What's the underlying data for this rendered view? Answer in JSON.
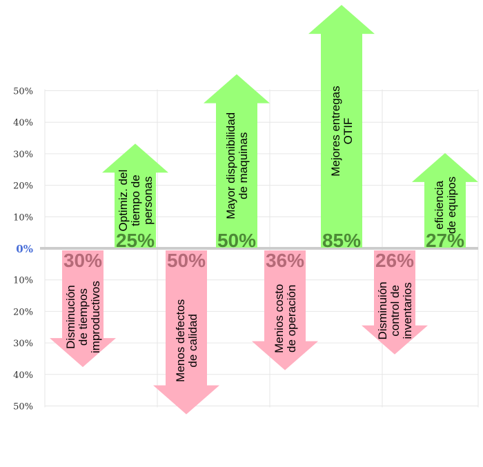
{
  "chart_data": {
    "type": "bar",
    "ylim": [
      -50,
      50
    ],
    "grid": true,
    "y_ticks_up": [
      "50%",
      "40%",
      "30%",
      "20%",
      "10%"
    ],
    "y_tick_zero": "0%",
    "y_ticks_down": [
      "10%",
      "20%",
      "30%",
      "40%",
      "50%"
    ],
    "colors": {
      "up": "#99ff77",
      "up_text": "#4c8a36",
      "down": "#ffafc0",
      "down_text": "#b56a78",
      "axis": "#cccccc",
      "grid": "#e6e6e6"
    },
    "increases": [
      {
        "label": "Optimiz. del tiempo de personas",
        "lines": [
          "Optimiz. del",
          "tiempo de",
          "personas"
        ],
        "value": 25,
        "display": "25%",
        "height": 33
      },
      {
        "label": "Mayor disponibilidad de maquinas",
        "lines": [
          "Mayor disponibilidad",
          "de maquinas"
        ],
        "value": 50,
        "display": "50%",
        "height": 55
      },
      {
        "label": "Mejores entregas OTIF",
        "lines": [
          "Mejores entregas",
          "OTIF"
        ],
        "value": 85,
        "display": "85%",
        "height": 77
      },
      {
        "label": "eficiencia de equipos",
        "lines": [
          "eficiencia",
          "de equipos"
        ],
        "value": 27,
        "display": "27%",
        "height": 30
      }
    ],
    "decreases": [
      {
        "label": "Disminución de tiempos improductivos",
        "lines": [
          "Disminución",
          "de tiempos",
          "improductivos"
        ],
        "value": 30,
        "display": "30%",
        "height": 37
      },
      {
        "label": "Menos defectos de calidad",
        "lines": [
          "Menos defectos",
          "de calidad"
        ],
        "value": 50,
        "display": "50%",
        "height": 52
      },
      {
        "label": "Menios costo de operación",
        "lines": [
          "Menios costo",
          "de operación"
        ],
        "value": 36,
        "display": "36%",
        "height": 38
      },
      {
        "label": "Disminuión control de inventarios",
        "lines": [
          "Disminuión",
          "control de",
          "inventarios"
        ],
        "value": 26,
        "display": "26%",
        "height": 33
      }
    ]
  }
}
